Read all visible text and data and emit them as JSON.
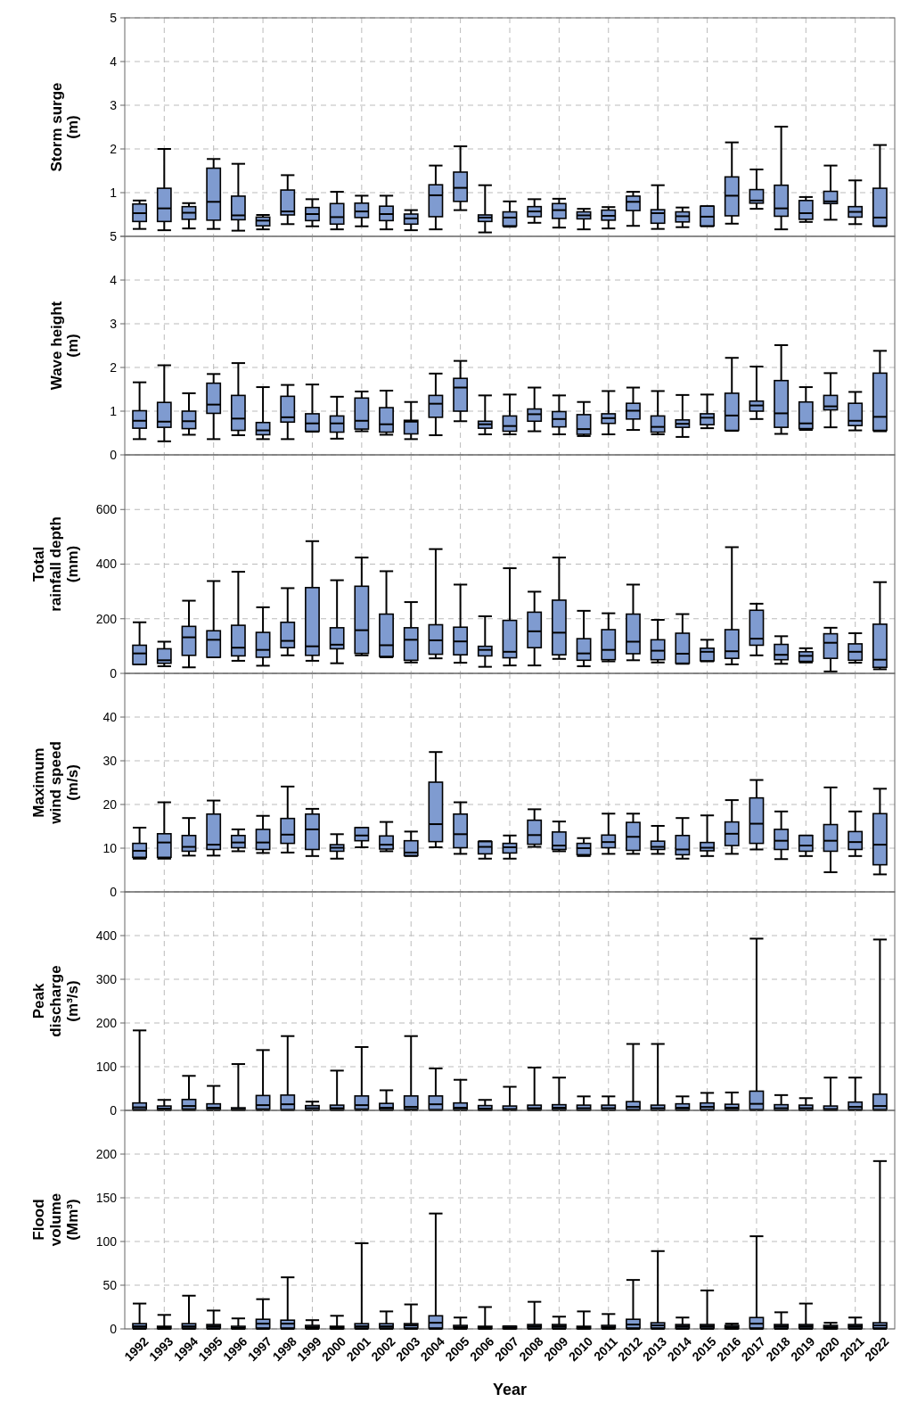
{
  "chart_data": [
    {
      "type": "box",
      "ylabel": "Storm surge\n(m)",
      "color": "#7f9bd0",
      "grid": true,
      "tick_labels": "y",
      "ylim": [
        0,
        5
      ],
      "yticks": [
        {
          "value": 0,
          "label": null
        },
        1,
        2,
        3,
        4,
        5
      ],
      "categories": [
        "1992",
        "1993",
        "1994",
        "1995",
        "1996",
        "1997",
        "1998",
        "1999",
        "2000",
        "2001",
        "2002",
        "2003",
        "2004",
        "2005",
        "2006",
        "2007",
        "2008",
        "2009",
        "2010",
        "2011",
        "2012",
        "2013",
        "2014",
        "2015",
        "2016",
        "2017",
        "2018",
        "2019",
        "2020",
        "2021",
        "2022"
      ],
      "boxes": [
        {
          "low": 0.17,
          "q1": 0.34,
          "median": 0.53,
          "q3": 0.74,
          "high": 0.82
        },
        {
          "low": 0.14,
          "q1": 0.34,
          "median": 0.64,
          "q3": 1.1,
          "high": 2.0
        },
        {
          "low": 0.18,
          "q1": 0.39,
          "median": 0.54,
          "q3": 0.68,
          "high": 0.76
        },
        {
          "low": 0.17,
          "q1": 0.37,
          "median": 0.79,
          "q3": 1.56,
          "high": 1.77
        },
        {
          "low": 0.13,
          "q1": 0.38,
          "median": 0.48,
          "q3": 0.92,
          "high": 1.66
        },
        {
          "low": 0.16,
          "q1": 0.24,
          "median": 0.36,
          "q3": 0.44,
          "high": 0.49
        },
        {
          "low": 0.28,
          "q1": 0.49,
          "median": 0.57,
          "q3": 1.06,
          "high": 1.4
        },
        {
          "low": 0.23,
          "q1": 0.36,
          "median": 0.51,
          "q3": 0.66,
          "high": 0.85
        },
        {
          "low": 0.16,
          "q1": 0.28,
          "median": 0.44,
          "q3": 0.75,
          "high": 1.02
        },
        {
          "low": 0.23,
          "q1": 0.43,
          "median": 0.57,
          "q3": 0.76,
          "high": 0.93
        },
        {
          "low": 0.16,
          "q1": 0.36,
          "median": 0.51,
          "q3": 0.69,
          "high": 0.93
        },
        {
          "low": 0.14,
          "q1": 0.28,
          "median": 0.41,
          "q3": 0.51,
          "high": 0.6
        },
        {
          "low": 0.16,
          "q1": 0.45,
          "median": 0.94,
          "q3": 1.18,
          "high": 1.62
        },
        {
          "low": 0.6,
          "q1": 0.8,
          "median": 1.11,
          "q3": 1.47,
          "high": 2.06
        },
        {
          "low": 0.09,
          "q1": 0.34,
          "median": 0.43,
          "q3": 0.49,
          "high": 1.17
        },
        {
          "low": 0.22,
          "q1": 0.24,
          "median": 0.43,
          "q3": 0.56,
          "high": 0.8
        },
        {
          "low": 0.31,
          "q1": 0.45,
          "median": 0.57,
          "q3": 0.68,
          "high": 0.85
        },
        {
          "low": 0.2,
          "q1": 0.41,
          "median": 0.6,
          "q3": 0.75,
          "high": 0.86
        },
        {
          "low": 0.16,
          "q1": 0.4,
          "median": 0.48,
          "q3": 0.56,
          "high": 0.63
        },
        {
          "low": 0.18,
          "q1": 0.37,
          "median": 0.47,
          "q3": 0.6,
          "high": 0.67
        },
        {
          "low": 0.24,
          "q1": 0.59,
          "median": 0.79,
          "q3": 0.92,
          "high": 1.02
        },
        {
          "low": 0.17,
          "q1": 0.3,
          "median": 0.53,
          "q3": 0.61,
          "high": 1.17
        },
        {
          "low": 0.21,
          "q1": 0.33,
          "median": 0.46,
          "q3": 0.56,
          "high": 0.66
        },
        {
          "low": 0.23,
          "q1": 0.24,
          "median": 0.45,
          "q3": 0.69,
          "high": 0.69
        },
        {
          "low": 0.29,
          "q1": 0.47,
          "median": 0.93,
          "q3": 1.36,
          "high": 2.15
        },
        {
          "low": 0.63,
          "q1": 0.76,
          "median": 0.82,
          "q3": 1.07,
          "high": 1.53
        },
        {
          "low": 0.16,
          "q1": 0.46,
          "median": 0.64,
          "q3": 1.17,
          "high": 2.51
        },
        {
          "low": 0.33,
          "q1": 0.39,
          "median": 0.53,
          "q3": 0.82,
          "high": 0.9
        },
        {
          "low": 0.38,
          "q1": 0.75,
          "median": 0.8,
          "q3": 1.03,
          "high": 1.62
        },
        {
          "low": 0.28,
          "q1": 0.44,
          "median": 0.56,
          "q3": 0.68,
          "high": 1.28
        },
        {
          "low": 0.23,
          "q1": 0.24,
          "median": 0.43,
          "q3": 1.1,
          "high": 2.09
        }
      ]
    },
    {
      "type": "box",
      "ylabel": "Wave height\n(m)",
      "color": "#7f9bd0",
      "grid": true,
      "tick_labels": "y",
      "ylim": [
        0,
        5
      ],
      "yticks": [
        0,
        1,
        2,
        3,
        4,
        5
      ],
      "categories": [
        "1992",
        "1993",
        "1994",
        "1995",
        "1996",
        "1997",
        "1998",
        "1999",
        "2000",
        "2001",
        "2002",
        "2003",
        "2004",
        "2005",
        "2006",
        "2007",
        "2008",
        "2009",
        "2010",
        "2011",
        "2012",
        "2013",
        "2014",
        "2015",
        "2016",
        "2017",
        "2018",
        "2019",
        "2020",
        "2021",
        "2022"
      ],
      "boxes": [
        {
          "low": 0.36,
          "q1": 0.61,
          "median": 0.78,
          "q3": 1.01,
          "high": 1.66
        },
        {
          "low": 0.31,
          "q1": 0.63,
          "median": 0.76,
          "q3": 1.2,
          "high": 2.05
        },
        {
          "low": 0.46,
          "q1": 0.6,
          "median": 0.77,
          "q3": 1.0,
          "high": 1.41
        },
        {
          "low": 0.36,
          "q1": 0.95,
          "median": 1.15,
          "q3": 1.64,
          "high": 1.85
        },
        {
          "low": 0.45,
          "q1": 0.56,
          "median": 0.83,
          "q3": 1.36,
          "high": 2.1
        },
        {
          "low": 0.36,
          "q1": 0.46,
          "median": 0.56,
          "q3": 0.74,
          "high": 1.55
        },
        {
          "low": 0.36,
          "q1": 0.75,
          "median": 0.86,
          "q3": 1.34,
          "high": 1.6
        },
        {
          "low": 0.53,
          "q1": 0.54,
          "median": 0.72,
          "q3": 0.94,
          "high": 1.61
        },
        {
          "low": 0.37,
          "q1": 0.52,
          "median": 0.72,
          "q3": 0.89,
          "high": 1.33
        },
        {
          "low": 0.54,
          "q1": 0.59,
          "median": 0.78,
          "q3": 1.3,
          "high": 1.45
        },
        {
          "low": 0.46,
          "q1": 0.52,
          "median": 0.7,
          "q3": 1.08,
          "high": 1.47
        },
        {
          "low": 0.36,
          "q1": 0.48,
          "median": 0.76,
          "q3": 0.79,
          "high": 1.21
        },
        {
          "low": 0.45,
          "q1": 0.86,
          "median": 1.17,
          "q3": 1.36,
          "high": 1.86
        },
        {
          "low": 0.77,
          "q1": 1.0,
          "median": 1.54,
          "q3": 1.75,
          "high": 2.15
        },
        {
          "low": 0.47,
          "q1": 0.61,
          "median": 0.7,
          "q3": 0.77,
          "high": 1.36
        },
        {
          "low": 0.47,
          "q1": 0.54,
          "median": 0.66,
          "q3": 0.89,
          "high": 1.38
        },
        {
          "low": 0.54,
          "q1": 0.77,
          "median": 0.93,
          "q3": 1.05,
          "high": 1.54
        },
        {
          "low": 0.47,
          "q1": 0.64,
          "median": 0.82,
          "q3": 0.99,
          "high": 1.36
        },
        {
          "low": 0.43,
          "q1": 0.47,
          "median": 0.59,
          "q3": 0.92,
          "high": 1.21
        },
        {
          "low": 0.47,
          "q1": 0.72,
          "median": 0.84,
          "q3": 0.94,
          "high": 1.46
        },
        {
          "low": 0.57,
          "q1": 0.82,
          "median": 1.01,
          "q3": 1.18,
          "high": 1.54
        },
        {
          "low": 0.47,
          "q1": 0.52,
          "median": 0.64,
          "q3": 0.89,
          "high": 1.46
        },
        {
          "low": 0.41,
          "q1": 0.63,
          "median": 0.71,
          "q3": 0.8,
          "high": 1.37
        },
        {
          "low": 0.61,
          "q1": 0.69,
          "median": 0.85,
          "q3": 0.94,
          "high": 1.38
        },
        {
          "low": 0.55,
          "q1": 0.56,
          "median": 0.9,
          "q3": 1.41,
          "high": 2.22
        },
        {
          "low": 0.82,
          "q1": 1.0,
          "median": 1.13,
          "q3": 1.23,
          "high": 2.02
        },
        {
          "low": 0.48,
          "q1": 0.63,
          "median": 0.95,
          "q3": 1.7,
          "high": 2.51
        },
        {
          "low": 0.57,
          "q1": 0.6,
          "median": 0.72,
          "q3": 1.21,
          "high": 1.55
        },
        {
          "low": 0.63,
          "q1": 1.03,
          "median": 1.11,
          "q3": 1.36,
          "high": 1.87
        },
        {
          "low": 0.56,
          "q1": 0.67,
          "median": 0.78,
          "q3": 1.18,
          "high": 1.44
        },
        {
          "low": 0.54,
          "q1": 0.56,
          "median": 0.87,
          "q3": 1.87,
          "high": 2.38
        }
      ]
    },
    {
      "type": "box",
      "ylabel": "Total\nrainfall depth\n(mm)",
      "color": "#7f9bd0",
      "grid": true,
      "tick_labels": "y",
      "ylim": [
        0,
        800
      ],
      "yticks": [
        0,
        200,
        400,
        600
      ],
      "categories": [
        "1992",
        "1993",
        "1994",
        "1995",
        "1996",
        "1997",
        "1998",
        "1999",
        "2000",
        "2001",
        "2002",
        "2003",
        "2004",
        "2005",
        "2006",
        "2007",
        "2008",
        "2009",
        "2010",
        "2011",
        "2012",
        "2013",
        "2014",
        "2015",
        "2016",
        "2017",
        "2018",
        "2019",
        "2020",
        "2021",
        "2022"
      ],
      "boxes": [
        {
          "low": 33,
          "q1": 33,
          "median": 73,
          "q3": 103,
          "high": 187
        },
        {
          "low": 26,
          "q1": 37,
          "median": 48,
          "q3": 90,
          "high": 116
        },
        {
          "low": 22,
          "q1": 66,
          "median": 132,
          "q3": 172,
          "high": 266
        },
        {
          "low": 59,
          "q1": 59,
          "median": 123,
          "q3": 156,
          "high": 338
        },
        {
          "low": 46,
          "q1": 64,
          "median": 94,
          "q3": 176,
          "high": 372
        },
        {
          "low": 28,
          "q1": 59,
          "median": 86,
          "q3": 150,
          "high": 242
        },
        {
          "low": 66,
          "q1": 94,
          "median": 119,
          "q3": 187,
          "high": 312
        },
        {
          "low": 46,
          "q1": 66,
          "median": 99,
          "q3": 314,
          "high": 484
        },
        {
          "low": 37,
          "q1": 90,
          "median": 105,
          "q3": 167,
          "high": 341
        },
        {
          "low": 66,
          "q1": 73,
          "median": 158,
          "q3": 319,
          "high": 424
        },
        {
          "low": 59,
          "q1": 62,
          "median": 103,
          "q3": 217,
          "high": 374
        },
        {
          "low": 40,
          "q1": 48,
          "median": 123,
          "q3": 167,
          "high": 261
        },
        {
          "low": 55,
          "q1": 70,
          "median": 121,
          "q3": 178,
          "high": 455
        },
        {
          "low": 39,
          "q1": 68,
          "median": 117,
          "q3": 169,
          "high": 325
        },
        {
          "low": 24,
          "q1": 64,
          "median": 86,
          "q3": 99,
          "high": 209
        },
        {
          "low": 29,
          "q1": 57,
          "median": 79,
          "q3": 194,
          "high": 385
        },
        {
          "low": 29,
          "q1": 94,
          "median": 154,
          "q3": 224,
          "high": 299
        },
        {
          "low": 53,
          "q1": 68,
          "median": 149,
          "q3": 268,
          "high": 424
        },
        {
          "low": 26,
          "q1": 48,
          "median": 73,
          "q3": 127,
          "high": 229
        },
        {
          "low": 44,
          "q1": 50,
          "median": 86,
          "q3": 160,
          "high": 220
        },
        {
          "low": 48,
          "q1": 72,
          "median": 116,
          "q3": 217,
          "high": 325
        },
        {
          "low": 40,
          "q1": 50,
          "median": 83,
          "q3": 123,
          "high": 196
        },
        {
          "low": 35,
          "q1": 37,
          "median": 72,
          "q3": 147,
          "high": 217
        },
        {
          "low": 44,
          "q1": 46,
          "median": 79,
          "q3": 92,
          "high": 123
        },
        {
          "low": 33,
          "q1": 55,
          "median": 81,
          "q3": 160,
          "high": 462
        },
        {
          "low": 66,
          "q1": 103,
          "median": 127,
          "q3": 231,
          "high": 255
        },
        {
          "low": 35,
          "q1": 50,
          "median": 68,
          "q3": 106,
          "high": 136
        },
        {
          "low": 40,
          "q1": 44,
          "median": 64,
          "q3": 79,
          "high": 92
        },
        {
          "low": 7,
          "q1": 55,
          "median": 112,
          "q3": 145,
          "high": 167
        },
        {
          "low": 39,
          "q1": 48,
          "median": 79,
          "q3": 108,
          "high": 147
        },
        {
          "low": 15,
          "q1": 22,
          "median": 50,
          "q3": 180,
          "high": 334
        }
      ]
    },
    {
      "type": "box",
      "ylabel": "Maximum\nwind speed\n(m/s)",
      "color": "#7f9bd0",
      "grid": true,
      "tick_labels": "y",
      "ylim": [
        0,
        50
      ],
      "yticks": [
        0,
        10,
        20,
        30,
        40
      ],
      "categories": [
        "1992",
        "1993",
        "1994",
        "1995",
        "1996",
        "1997",
        "1998",
        "1999",
        "2000",
        "2001",
        "2002",
        "2003",
        "2004",
        "2005",
        "2006",
        "2007",
        "2008",
        "2009",
        "2010",
        "2011",
        "2012",
        "2013",
        "2014",
        "2015",
        "2016",
        "2017",
        "2018",
        "2019",
        "2020",
        "2021",
        "2022"
      ],
      "boxes": [
        {
          "low": 7.6,
          "q1": 7.9,
          "median": 9.4,
          "q3": 11.1,
          "high": 14.7
        },
        {
          "low": 7.6,
          "q1": 7.9,
          "median": 11.3,
          "q3": 13.3,
          "high": 20.5
        },
        {
          "low": 8.3,
          "q1": 9.3,
          "median": 10.3,
          "q3": 12.9,
          "high": 16.9
        },
        {
          "low": 8.3,
          "q1": 9.7,
          "median": 10.8,
          "q3": 17.8,
          "high": 20.9
        },
        {
          "low": 9.3,
          "q1": 10.1,
          "median": 11.3,
          "q3": 12.9,
          "high": 14.3
        },
        {
          "low": 8.9,
          "q1": 9.7,
          "median": 11.3,
          "q3": 14.3,
          "high": 17.4
        },
        {
          "low": 9.0,
          "q1": 11.1,
          "median": 13.1,
          "q3": 16.8,
          "high": 24.1
        },
        {
          "low": 8.2,
          "q1": 9.7,
          "median": 14.3,
          "q3": 17.8,
          "high": 19.0
        },
        {
          "low": 7.6,
          "q1": 9.3,
          "median": 10.1,
          "q3": 10.8,
          "high": 13.2
        },
        {
          "low": 10.2,
          "q1": 11.7,
          "median": 12.9,
          "q3": 14.7,
          "high": 14.7
        },
        {
          "low": 9.3,
          "q1": 9.8,
          "median": 10.8,
          "q3": 12.8,
          "high": 16.0
        },
        {
          "low": 8.2,
          "q1": 8.3,
          "median": 9.0,
          "q3": 11.7,
          "high": 13.8
        },
        {
          "low": 10.2,
          "q1": 11.5,
          "median": 15.5,
          "q3": 25.1,
          "high": 32.0
        },
        {
          "low": 8.7,
          "q1": 10.1,
          "median": 13.2,
          "q3": 17.8,
          "high": 20.5
        },
        {
          "low": 7.6,
          "q1": 8.7,
          "median": 10.3,
          "q3": 11.5,
          "high": 11.6
        },
        {
          "low": 7.6,
          "q1": 8.9,
          "median": 10.2,
          "q3": 11.1,
          "high": 12.9
        },
        {
          "low": 10.3,
          "q1": 10.9,
          "median": 13.0,
          "q3": 16.4,
          "high": 18.9
        },
        {
          "low": 9.3,
          "q1": 9.7,
          "median": 10.6,
          "q3": 13.7,
          "high": 16.1
        },
        {
          "low": 8.2,
          "q1": 8.5,
          "median": 10.0,
          "q3": 11.1,
          "high": 12.3
        },
        {
          "low": 8.7,
          "q1": 10.1,
          "median": 11.4,
          "q3": 13.0,
          "high": 17.9
        },
        {
          "low": 8.7,
          "q1": 9.5,
          "median": 12.6,
          "q3": 15.9,
          "high": 17.9
        },
        {
          "low": 8.7,
          "q1": 9.7,
          "median": 10.3,
          "q3": 11.6,
          "high": 15.1
        },
        {
          "low": 7.6,
          "q1": 8.5,
          "median": 9.7,
          "q3": 12.9,
          "high": 16.9
        },
        {
          "low": 8.2,
          "q1": 9.4,
          "median": 10.1,
          "q3": 11.3,
          "high": 17.5
        },
        {
          "low": 8.7,
          "q1": 10.6,
          "median": 13.3,
          "q3": 16.0,
          "high": 21.0
        },
        {
          "low": 9.7,
          "q1": 11.1,
          "median": 15.6,
          "q3": 21.5,
          "high": 25.6
        },
        {
          "low": 7.5,
          "q1": 9.7,
          "median": 11.7,
          "q3": 14.3,
          "high": 18.4
        },
        {
          "low": 8.2,
          "q1": 9.3,
          "median": 10.6,
          "q3": 12.9,
          "high": 12.9
        },
        {
          "low": 4.5,
          "q1": 9.3,
          "median": 11.7,
          "q3": 15.4,
          "high": 23.9
        },
        {
          "low": 8.2,
          "q1": 9.7,
          "median": 11.4,
          "q3": 13.8,
          "high": 18.4
        },
        {
          "low": 4.0,
          "q1": 6.2,
          "median": 10.8,
          "q3": 17.9,
          "high": 23.6
        }
      ]
    },
    {
      "type": "box",
      "ylabel": "Peak\ndischarge\n(m³/s)",
      "color": "#7f9bd0",
      "grid": true,
      "tick_labels": "y",
      "ylim": [
        0,
        500
      ],
      "yticks": [
        0,
        100,
        200,
        300,
        400
      ],
      "categories": [
        "1992",
        "1993",
        "1994",
        "1995",
        "1996",
        "1997",
        "1998",
        "1999",
        "2000",
        "2001",
        "2002",
        "2003",
        "2004",
        "2005",
        "2006",
        "2007",
        "2008",
        "2009",
        "2010",
        "2011",
        "2012",
        "2013",
        "2014",
        "2015",
        "2016",
        "2017",
        "2018",
        "2019",
        "2020",
        "2021",
        "2022"
      ],
      "boxes": [
        {
          "low": 0,
          "q1": 2,
          "median": 7,
          "q3": 17,
          "high": 183
        },
        {
          "low": 0,
          "q1": 1,
          "median": 4,
          "q3": 10,
          "high": 24
        },
        {
          "low": 0,
          "q1": 3,
          "median": 10,
          "q3": 25,
          "high": 79
        },
        {
          "low": 0,
          "q1": 2,
          "median": 6,
          "q3": 15,
          "high": 56
        },
        {
          "low": 0,
          "q1": 1,
          "median": 2,
          "q3": 6,
          "high": 106
        },
        {
          "low": 0,
          "q1": 3,
          "median": 12,
          "q3": 34,
          "high": 138
        },
        {
          "low": 0,
          "q1": 2,
          "median": 14,
          "q3": 35,
          "high": 170
        },
        {
          "low": 0,
          "q1": 1,
          "median": 5,
          "q3": 11,
          "high": 20
        },
        {
          "low": 0,
          "q1": 2,
          "median": 5,
          "q3": 12,
          "high": 91
        },
        {
          "low": 0,
          "q1": 3,
          "median": 12,
          "q3": 33,
          "high": 145
        },
        {
          "low": 0,
          "q1": 2,
          "median": 6,
          "q3": 16,
          "high": 46
        },
        {
          "low": 0,
          "q1": 3,
          "median": 8,
          "q3": 33,
          "high": 170
        },
        {
          "low": 0,
          "q1": 2,
          "median": 14,
          "q3": 33,
          "high": 96
        },
        {
          "low": 0,
          "q1": 2,
          "median": 6,
          "q3": 17,
          "high": 70
        },
        {
          "low": 0,
          "q1": 1,
          "median": 4,
          "q3": 11,
          "high": 24
        },
        {
          "low": 0,
          "q1": 1,
          "median": 3,
          "q3": 10,
          "high": 54
        },
        {
          "low": 0,
          "q1": 2,
          "median": 5,
          "q3": 12,
          "high": 98
        },
        {
          "low": 0,
          "q1": 2,
          "median": 6,
          "q3": 13,
          "high": 75
        },
        {
          "low": 0,
          "q1": 1,
          "median": 5,
          "q3": 12,
          "high": 32
        },
        {
          "low": 0,
          "q1": 1,
          "median": 5,
          "q3": 12,
          "high": 32
        },
        {
          "low": 0,
          "q1": 2,
          "median": 8,
          "q3": 20,
          "high": 152
        },
        {
          "low": 0,
          "q1": 1,
          "median": 5,
          "q3": 12,
          "high": 152
        },
        {
          "low": 0,
          "q1": 2,
          "median": 6,
          "q3": 15,
          "high": 32
        },
        {
          "low": 0,
          "q1": 2,
          "median": 8,
          "q3": 17,
          "high": 40
        },
        {
          "low": 0,
          "q1": 2,
          "median": 6,
          "q3": 14,
          "high": 41
        },
        {
          "low": 0,
          "q1": 2,
          "median": 15,
          "q3": 44,
          "high": 393
        },
        {
          "low": 0,
          "q1": 1,
          "median": 5,
          "q3": 13,
          "high": 35
        },
        {
          "low": 0,
          "q1": 1,
          "median": 5,
          "q3": 12,
          "high": 28
        },
        {
          "low": 0,
          "q1": 1,
          "median": 3,
          "q3": 10,
          "high": 75
        },
        {
          "low": 0,
          "q1": 2,
          "median": 8,
          "q3": 19,
          "high": 75
        },
        {
          "low": 0,
          "q1": 2,
          "median": 10,
          "q3": 37,
          "high": 391
        }
      ]
    },
    {
      "type": "box",
      "ylabel": "Flood\nvolume\n(Mm³)",
      "xlabel": "Year",
      "color": "#7f9bd0",
      "grid": true,
      "ylim": [
        0,
        250
      ],
      "yticks": [
        0,
        50,
        100,
        150,
        200
      ],
      "categories": [
        "1992",
        "1993",
        "1994",
        "1995",
        "1996",
        "1997",
        "1998",
        "1999",
        "2000",
        "2001",
        "2002",
        "2003",
        "2004",
        "2005",
        "2006",
        "2007",
        "2008",
        "2009",
        "2010",
        "2011",
        "2012",
        "2013",
        "2014",
        "2015",
        "2016",
        "2017",
        "2018",
        "2019",
        "2020",
        "2021",
        "2022"
      ],
      "boxes": [
        {
          "low": 0,
          "q1": 1,
          "median": 3,
          "q3": 6,
          "high": 29
        },
        {
          "low": 0,
          "q1": 0.5,
          "median": 2,
          "q3": 3,
          "high": 16
        },
        {
          "low": 0,
          "q1": 1,
          "median": 3,
          "q3": 6,
          "high": 38
        },
        {
          "low": 0,
          "q1": 1,
          "median": 3,
          "q3": 5,
          "high": 21
        },
        {
          "low": 0,
          "q1": 0.5,
          "median": 1,
          "q3": 3,
          "high": 12
        },
        {
          "low": 0,
          "q1": 1,
          "median": 6,
          "q3": 11,
          "high": 34
        },
        {
          "low": 0,
          "q1": 1,
          "median": 6,
          "q3": 10,
          "high": 59
        },
        {
          "low": 0,
          "q1": 1,
          "median": 2,
          "q3": 4,
          "high": 10
        },
        {
          "low": 0,
          "q1": 0.5,
          "median": 2,
          "q3": 3,
          "high": 15
        },
        {
          "low": 0,
          "q1": 1,
          "median": 3,
          "q3": 6,
          "high": 98
        },
        {
          "low": 0,
          "q1": 1,
          "median": 3,
          "q3": 6,
          "high": 20
        },
        {
          "low": 0,
          "q1": 1,
          "median": 4,
          "q3": 6,
          "high": 28
        },
        {
          "low": 0,
          "q1": 1,
          "median": 7,
          "q3": 15,
          "high": 132
        },
        {
          "low": 0,
          "q1": 1,
          "median": 2,
          "q3": 4,
          "high": 13
        },
        {
          "low": 0,
          "q1": 0.5,
          "median": 2,
          "q3": 3,
          "high": 25
        },
        {
          "low": 0,
          "q1": 0.5,
          "median": 1,
          "q3": 3,
          "high": 3
        },
        {
          "low": 0,
          "q1": 1,
          "median": 3,
          "q3": 5,
          "high": 31
        },
        {
          "low": 0,
          "q1": 1,
          "median": 3,
          "q3": 5,
          "high": 14
        },
        {
          "low": 0,
          "q1": 0.5,
          "median": 2,
          "q3": 3,
          "high": 20
        },
        {
          "low": 0,
          "q1": 1,
          "median": 2,
          "q3": 4,
          "high": 17
        },
        {
          "low": 0,
          "q1": 1,
          "median": 5,
          "q3": 11,
          "high": 56
        },
        {
          "low": 0,
          "q1": 1,
          "median": 4,
          "q3": 7,
          "high": 89
        },
        {
          "low": 0,
          "q1": 1,
          "median": 3,
          "q3": 5,
          "high": 13
        },
        {
          "low": 0,
          "q1": 1,
          "median": 3,
          "q3": 5,
          "high": 44
        },
        {
          "low": 0,
          "q1": 0.5,
          "median": 2,
          "q3": 4,
          "high": 6
        },
        {
          "low": 0,
          "q1": 1,
          "median": 6,
          "q3": 13,
          "high": 106
        },
        {
          "low": 0,
          "q1": 1,
          "median": 3,
          "q3": 5,
          "high": 19
        },
        {
          "low": 0,
          "q1": 1,
          "median": 3,
          "q3": 5,
          "high": 29
        },
        {
          "low": 0,
          "q1": 0.5,
          "median": 2,
          "q3": 4,
          "high": 7
        },
        {
          "low": 0,
          "q1": 1,
          "median": 3,
          "q3": 5,
          "high": 13
        },
        {
          "low": 0,
          "q1": 1,
          "median": 4,
          "q3": 7,
          "high": 192
        }
      ]
    }
  ]
}
